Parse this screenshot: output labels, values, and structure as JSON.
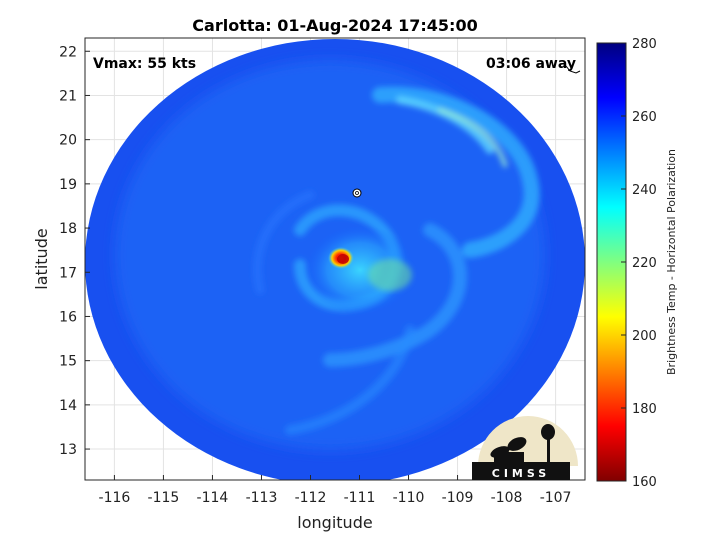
{
  "chart_data": {
    "type": "heatmap",
    "title": "Carlotta: 01-Aug-2024 17:45:00",
    "xlabel": "longitude",
    "ylabel": "latitude",
    "xlim": [
      -116.6,
      -106.4
    ],
    "ylim": [
      12.3,
      22.3
    ],
    "x_ticks": [
      -116,
      -115,
      -114,
      -113,
      -112,
      -111,
      -110,
      -109,
      -108,
      -107
    ],
    "y_ticks": [
      13,
      14,
      15,
      16,
      17,
      18,
      19,
      20,
      21,
      22
    ],
    "grid": true,
    "annotations": {
      "top_left": "Vmax: 55 kts",
      "top_right": "03:06 away"
    },
    "storm_center": {
      "lon": -111.35,
      "lat": 17.4
    },
    "min_brightness_temp": 185,
    "colorbar": {
      "label": "Brightness Temp - Horizontal Polarization",
      "range": [
        160,
        280
      ],
      "ticks": [
        160,
        180,
        200,
        220,
        240,
        260,
        280
      ],
      "colormap": [
        "#800000",
        "#ff0000",
        "#ff8000",
        "#ffff00",
        "#80ff80",
        "#00ffff",
        "#0080ff",
        "#0000ff",
        "#000080"
      ]
    },
    "background_temp": 262,
    "logo_text": "CIMSS"
  }
}
